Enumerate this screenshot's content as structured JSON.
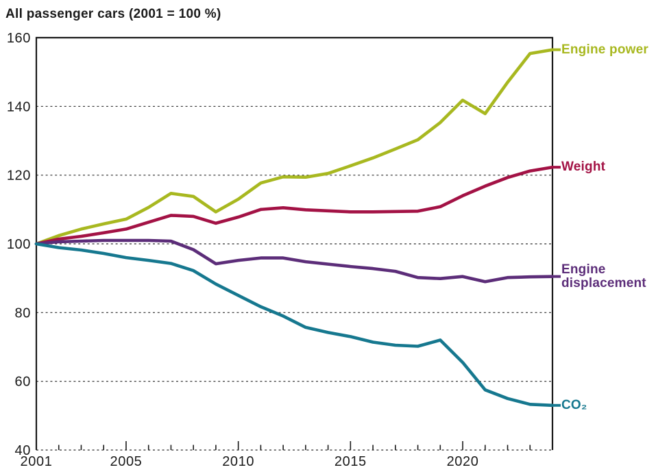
{
  "chart_data": {
    "type": "line",
    "title": "All passenger cars (2001 = 100 %)",
    "xlabel": "",
    "ylabel": "",
    "x": [
      2001,
      2002,
      2003,
      2004,
      2005,
      2006,
      2007,
      2008,
      2009,
      2010,
      2011,
      2012,
      2013,
      2014,
      2015,
      2016,
      2017,
      2018,
      2019,
      2020,
      2021,
      2022,
      2023,
      2024
    ],
    "xticks_major": [
      2001,
      2005,
      2010,
      2015,
      2020
    ],
    "ylim": [
      40,
      160
    ],
    "yticks": [
      40,
      60,
      80,
      100,
      120,
      140,
      160
    ],
    "grid": "horizontal dashed",
    "legend_position": "right of plot, aligned to line ends",
    "axis_color": "#1a1a1a",
    "gridline_color": "#2a2a2a",
    "background": "#ffffff",
    "series": [
      {
        "name": "Engine power",
        "color": "#a8b820",
        "values": [
          100,
          102.4,
          104.3,
          105.8,
          107.2,
          110.6,
          114.7,
          113.8,
          109.3,
          113.0,
          117.7,
          119.5,
          119.4,
          120.5,
          122.7,
          125.0,
          127.6,
          130.3,
          135.3,
          141.8,
          137.9,
          147.0,
          155.4,
          156.5
        ]
      },
      {
        "name": "Weight",
        "color": "#a31245",
        "values": [
          100,
          101.4,
          102.2,
          103.2,
          104.3,
          106.3,
          108.3,
          108.0,
          106.0,
          107.8,
          110.0,
          110.5,
          109.9,
          109.6,
          109.3,
          109.3,
          109.4,
          109.5,
          110.8,
          114.0,
          116.8,
          119.3,
          121.2,
          122.3
        ]
      },
      {
        "name": "Engine displacement",
        "color": "#5c2d79",
        "values": [
          100,
          100.6,
          100.8,
          101.0,
          101.0,
          101.0,
          100.8,
          98.3,
          94.2,
          95.2,
          95.9,
          95.9,
          94.8,
          94.1,
          93.4,
          92.8,
          92.0,
          90.2,
          89.9,
          90.5,
          89.0,
          90.2,
          90.4,
          90.5
        ]
      },
      {
        "name": "CO₂",
        "color": "#16788f",
        "values": [
          100,
          98.9,
          98.2,
          97.2,
          96.0,
          95.2,
          94.3,
          92.2,
          88.3,
          85.0,
          81.7,
          79.0,
          75.7,
          74.2,
          73.0,
          71.4,
          70.5,
          70.2,
          72.0,
          65.5,
          57.5,
          55.0,
          53.3,
          53.0
        ]
      }
    ]
  }
}
